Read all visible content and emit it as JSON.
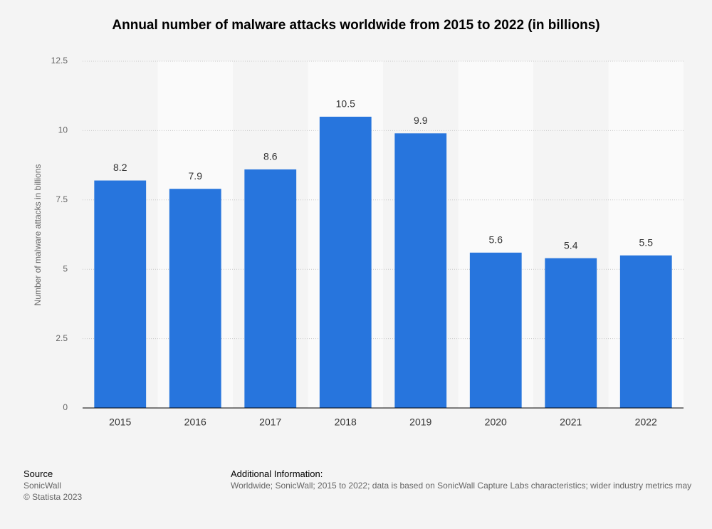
{
  "chart_data": {
    "type": "bar",
    "title": "Annual number of malware attacks worldwide from 2015 to 2022 (in billions)",
    "y_label": "Number of malware attacks in billions",
    "categories": [
      "2015",
      "2016",
      "2017",
      "2018",
      "2019",
      "2020",
      "2021",
      "2022"
    ],
    "values": [
      8.2,
      7.9,
      8.6,
      10.5,
      9.9,
      5.6,
      5.4,
      5.5
    ],
    "color": "#2775dd",
    "ylim": [
      0,
      12.5
    ],
    "yticks": [
      0,
      2.5,
      5,
      7.5,
      10,
      12.5
    ],
    "grid": true
  },
  "footer": {
    "source_heading": "Source",
    "source": "SonicWall",
    "copyright": "© Statista 2023",
    "info_heading": "Additional Information:",
    "info": "Worldwide; SonicWall; 2015 to 2022; data is based on SonicWall Capture Labs characteristics; wider industry metrics may"
  }
}
